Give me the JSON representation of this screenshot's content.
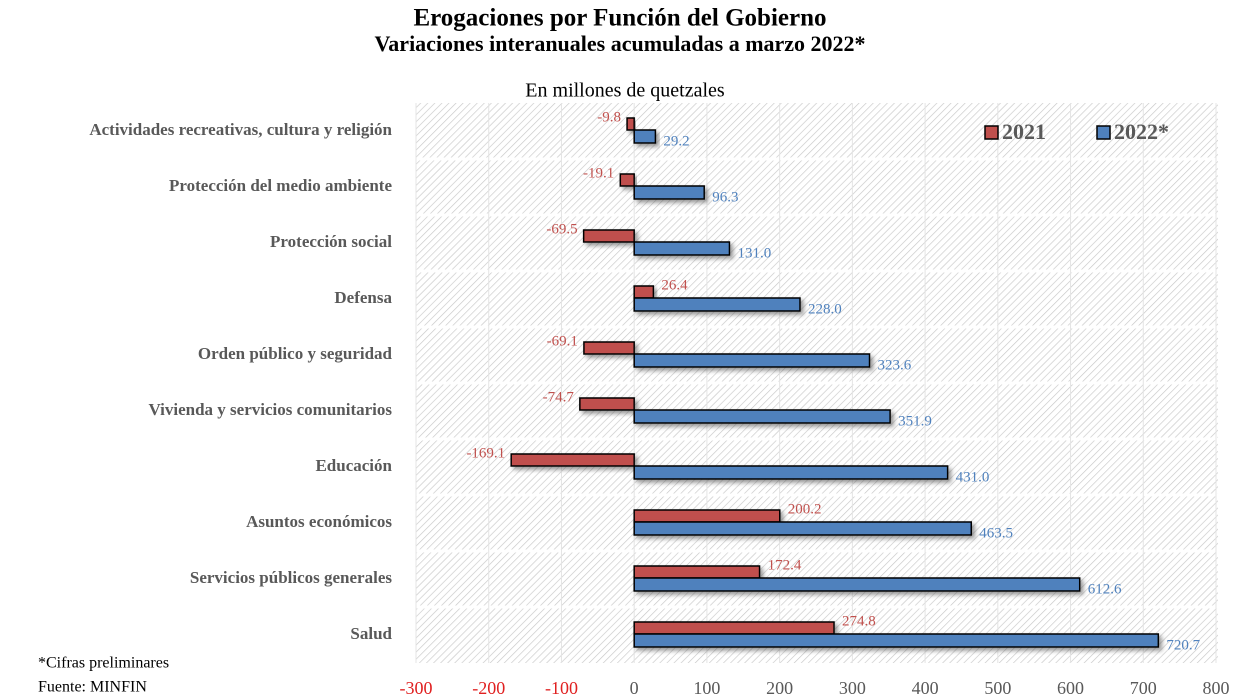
{
  "chart_data": {
    "type": "bar",
    "orientation": "horizontal",
    "title": "Erogaciones por Función del Gobierno",
    "subtitle": "Variaciones interanuales acumuladas a marzo 2022*",
    "unit": "En millones de quetzales",
    "categories": [
      "Actividades recreativas, cultura y religión",
      "Protección del medio ambiente",
      "Protección social",
      "Defensa",
      "Orden público y seguridad",
      "Vivienda y servicios comunitarios",
      "Educación",
      "Asuntos económicos",
      "Servicios públicos generales",
      "Salud"
    ],
    "series": [
      {
        "name": "2021",
        "color": "#c0504d",
        "values": [
          -9.8,
          -19.1,
          -69.5,
          26.4,
          -69.1,
          -74.7,
          -169.1,
          200.2,
          172.4,
          274.8
        ]
      },
      {
        "name": "2022*",
        "color": "#4f81bd",
        "values": [
          29.2,
          96.3,
          131.0,
          228.0,
          323.6,
          351.9,
          431.0,
          463.5,
          612.6,
          720.7
        ],
        "value_labels": [
          "29.2",
          "96.3",
          "131.0",
          "228.0",
          "323.6",
          "351.9",
          "431.0",
          "463.5",
          "612.6",
          "720.7"
        ]
      }
    ],
    "xlim": [
      -300,
      800
    ],
    "xticks": [
      -300,
      -200,
      -100,
      0,
      100,
      200,
      300,
      400,
      500,
      600,
      700,
      800
    ],
    "legend": "top-right",
    "notes": [
      "*Cifras preliminares",
      "Fuente: MINFIN"
    ]
  }
}
